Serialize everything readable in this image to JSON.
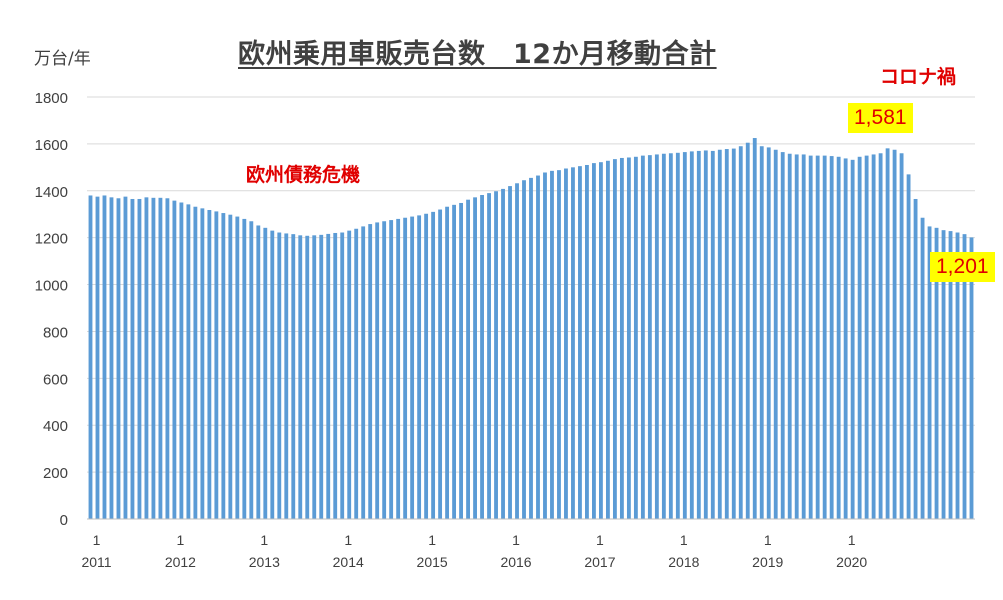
{
  "chart_data": {
    "type": "bar",
    "title": "欧州乗用車販売台数　12か月移動合計",
    "ylabel": "万台/年",
    "ylim": [
      0,
      1800
    ],
    "ytick_step": 200,
    "yticks": [
      "0",
      "200",
      "400",
      "600",
      "800",
      "1000",
      "1200",
      "1400",
      "1600",
      "1800"
    ],
    "grid": true,
    "bar_color": "#5b9bd5",
    "x_major_month_label": "1",
    "x_year_labels": [
      "2011",
      "2012",
      "2013",
      "2014",
      "2015",
      "2016",
      "2017",
      "2018",
      "2019",
      "2020"
    ],
    "values": [
      1380,
      1375,
      1380,
      1372,
      1368,
      1375,
      1365,
      1365,
      1372,
      1370,
      1370,
      1368,
      1358,
      1350,
      1342,
      1332,
      1325,
      1318,
      1312,
      1305,
      1298,
      1290,
      1280,
      1270,
      1252,
      1242,
      1230,
      1222,
      1218,
      1215,
      1210,
      1208,
      1210,
      1212,
      1216,
      1220,
      1222,
      1230,
      1238,
      1248,
      1258,
      1265,
      1270,
      1275,
      1280,
      1285,
      1290,
      1295,
      1302,
      1310,
      1320,
      1332,
      1340,
      1348,
      1362,
      1372,
      1382,
      1390,
      1398,
      1408,
      1420,
      1432,
      1445,
      1455,
      1465,
      1478,
      1485,
      1488,
      1495,
      1500,
      1505,
      1510,
      1518,
      1522,
      1528,
      1535,
      1540,
      1542,
      1545,
      1550,
      1552,
      1555,
      1558,
      1560,
      1562,
      1565,
      1568,
      1570,
      1572,
      1570,
      1575,
      1578,
      1580,
      1590,
      1605,
      1625,
      1590,
      1585,
      1575,
      1565,
      1558,
      1555,
      1555,
      1550,
      1550,
      1550,
      1548,
      1545,
      1538,
      1532,
      1545,
      1550,
      1555,
      1560,
      1581,
      1575,
      1560,
      1470,
      1365,
      1285,
      1248,
      1242,
      1232,
      1228,
      1222,
      1215,
      1201
    ],
    "annotations": [
      {
        "text": "欧州債務危機"
      },
      {
        "text": "コロナ禍"
      },
      {
        "text": "1,581",
        "style": "yellow-box"
      },
      {
        "text": "1,201",
        "style": "yellow-box"
      }
    ]
  }
}
